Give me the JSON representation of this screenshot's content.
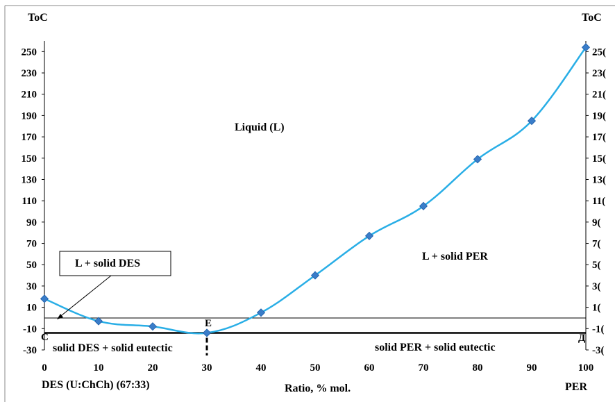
{
  "chart_data": {
    "type": "line",
    "x": [
      0,
      10,
      20,
      30,
      40,
      50,
      60,
      70,
      80,
      90,
      100
    ],
    "series": [
      {
        "values": [
          18,
          -3,
          -8,
          -14,
          5,
          40,
          77,
          105,
          149,
          185,
          254
        ]
      }
    ],
    "ylim": [
      -30,
      260
    ],
    "xlim": [
      0,
      100
    ],
    "x_ticks": [
      "0",
      "10",
      "20",
      "30",
      "40",
      "50",
      "60",
      "70",
      "80",
      "90",
      "100"
    ],
    "y_ticks_left": [
      "250",
      "230",
      "210",
      "190",
      "170",
      "150",
      "130",
      "110",
      "90",
      "70",
      "50",
      "30",
      "10",
      "-10",
      "-30"
    ],
    "y_ticks_right": [
      "25(",
      "23(",
      "21(",
      "19(",
      "17(",
      "15(",
      "13(",
      "11(",
      "9(",
      "7(",
      "5(",
      "3(",
      "1(",
      "-1(",
      "-3("
    ],
    "left_axis_label": "ToC",
    "right_axis_label": "ToC",
    "xlabel_left": "DES (U:ChCh) (67:33)",
    "xlabel": "Ratio, % mol.",
    "xlabel_right": "PER",
    "eutectic_temperature": -14,
    "eutectic_ratio": 30,
    "reference_line": 0,
    "annotations": {
      "liquid": "Liquid (L)",
      "l_solid_des": "L + solid DES",
      "l_solid_per": "L + solid PER",
      "solid_des_eutectic": "solid DES + solid eutectic",
      "solid_per_eutectic": "solid PER + solid eutectic",
      "point_c": "C",
      "point_e": "E",
      "point_d": "Д"
    },
    "colors": {
      "line": "#29aee6",
      "marker": "#3a7dc9"
    },
    "grid": false
  }
}
